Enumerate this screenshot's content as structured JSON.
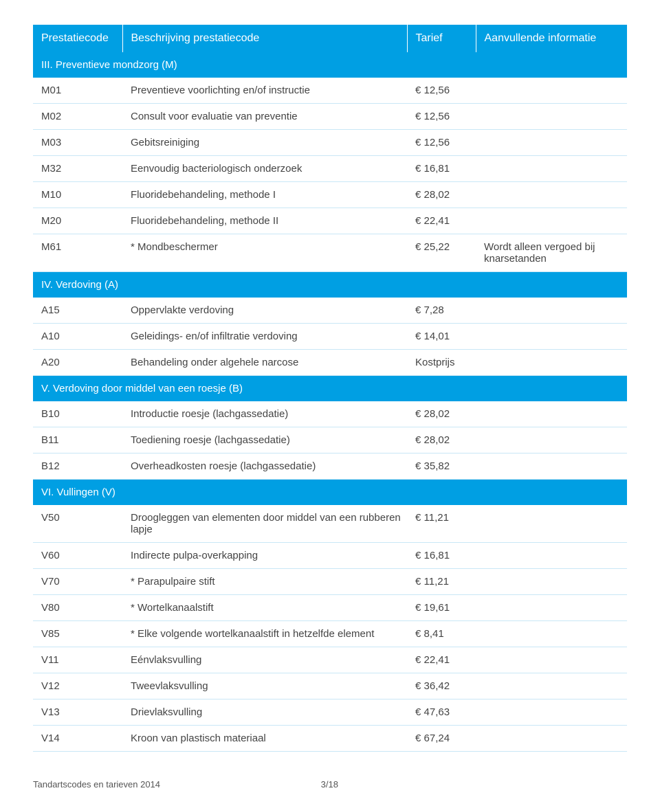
{
  "header": {
    "col0": "Prestatiecode",
    "col1": "Beschrijving prestatiecode",
    "col2": "Tarief",
    "col3": "Aanvullende informatie"
  },
  "sections": [
    {
      "title": "III. Preventieve mondzorg (M)",
      "rows": [
        {
          "code": "M01",
          "desc": "Preventieve voorlichting en/of instructie",
          "tarief": "€ 12,56",
          "info": ""
        },
        {
          "code": "M02",
          "desc": "Consult voor evaluatie van preventie",
          "tarief": "€ 12,56",
          "info": ""
        },
        {
          "code": "M03",
          "desc": "Gebitsreiniging",
          "tarief": "€ 12,56",
          "info": ""
        },
        {
          "code": "M32",
          "desc": "Eenvoudig bacteriologisch onderzoek",
          "tarief": "€ 16,81",
          "info": ""
        },
        {
          "code": "M10",
          "desc": "Fluoridebehandeling, methode I",
          "tarief": "€ 28,02",
          "info": ""
        },
        {
          "code": "M20",
          "desc": "Fluoridebehandeling, methode II",
          "tarief": "€ 22,41",
          "info": ""
        },
        {
          "code": "M61",
          "desc": "* Mondbeschermer",
          "tarief": "€ 25,22",
          "info": "Wordt alleen vergoed bij knarsetanden"
        }
      ]
    },
    {
      "title": "IV. Verdoving (A)",
      "rows": [
        {
          "code": "A15",
          "desc": "Oppervlakte verdoving",
          "tarief": "€ 7,28",
          "info": ""
        },
        {
          "code": "A10",
          "desc": "Geleidings- en/of infiltratie verdoving",
          "tarief": "€ 14,01",
          "info": ""
        },
        {
          "code": "A20",
          "desc": "Behandeling onder algehele narcose",
          "tarief": "Kostprijs",
          "info": ""
        }
      ]
    },
    {
      "title": "V. Verdoving door middel van een roesje (B)",
      "rows": [
        {
          "code": "B10",
          "desc": "Introductie roesje (lachgassedatie)",
          "tarief": "€ 28,02",
          "info": ""
        },
        {
          "code": "B11",
          "desc": "Toediening roesje (lachgassedatie)",
          "tarief": "€ 28,02",
          "info": ""
        },
        {
          "code": "B12",
          "desc": "Overheadkosten roesje (lachgassedatie)",
          "tarief": "€ 35,82",
          "info": ""
        }
      ]
    },
    {
      "title": "VI. Vullingen (V)",
      "rows": [
        {
          "code": "V50",
          "desc": "Droogleggen van elementen door middel van een rubberen lapje",
          "tarief": "€ 11,21",
          "info": ""
        },
        {
          "code": "V60",
          "desc": "Indirecte pulpa-overkapping",
          "tarief": "€ 16,81",
          "info": ""
        },
        {
          "code": "V70",
          "desc": "* Parapulpaire stift",
          "tarief": "€ 11,21",
          "info": ""
        },
        {
          "code": "V80",
          "desc": "* Wortelkanaalstift",
          "tarief": "€ 19,61",
          "info": ""
        },
        {
          "code": "V85",
          "desc": "* Elke volgende wortelkanaalstift in hetzelfde element",
          "tarief": "€ 8,41",
          "info": ""
        },
        {
          "code": "V11",
          "desc": "Eénvlaksvulling",
          "tarief": "€ 22,41",
          "info": ""
        },
        {
          "code": "V12",
          "desc": "Tweevlaksvulling",
          "tarief": "€ 36,42",
          "info": ""
        },
        {
          "code": "V13",
          "desc": "Drievlaksvulling",
          "tarief": "€ 47,63",
          "info": ""
        },
        {
          "code": "V14",
          "desc": "Kroon van plastisch materiaal",
          "tarief": "€ 67,24",
          "info": ""
        }
      ]
    }
  ],
  "footer": {
    "left": "Tandartscodes en tarieven 2014",
    "page": "3/18"
  }
}
